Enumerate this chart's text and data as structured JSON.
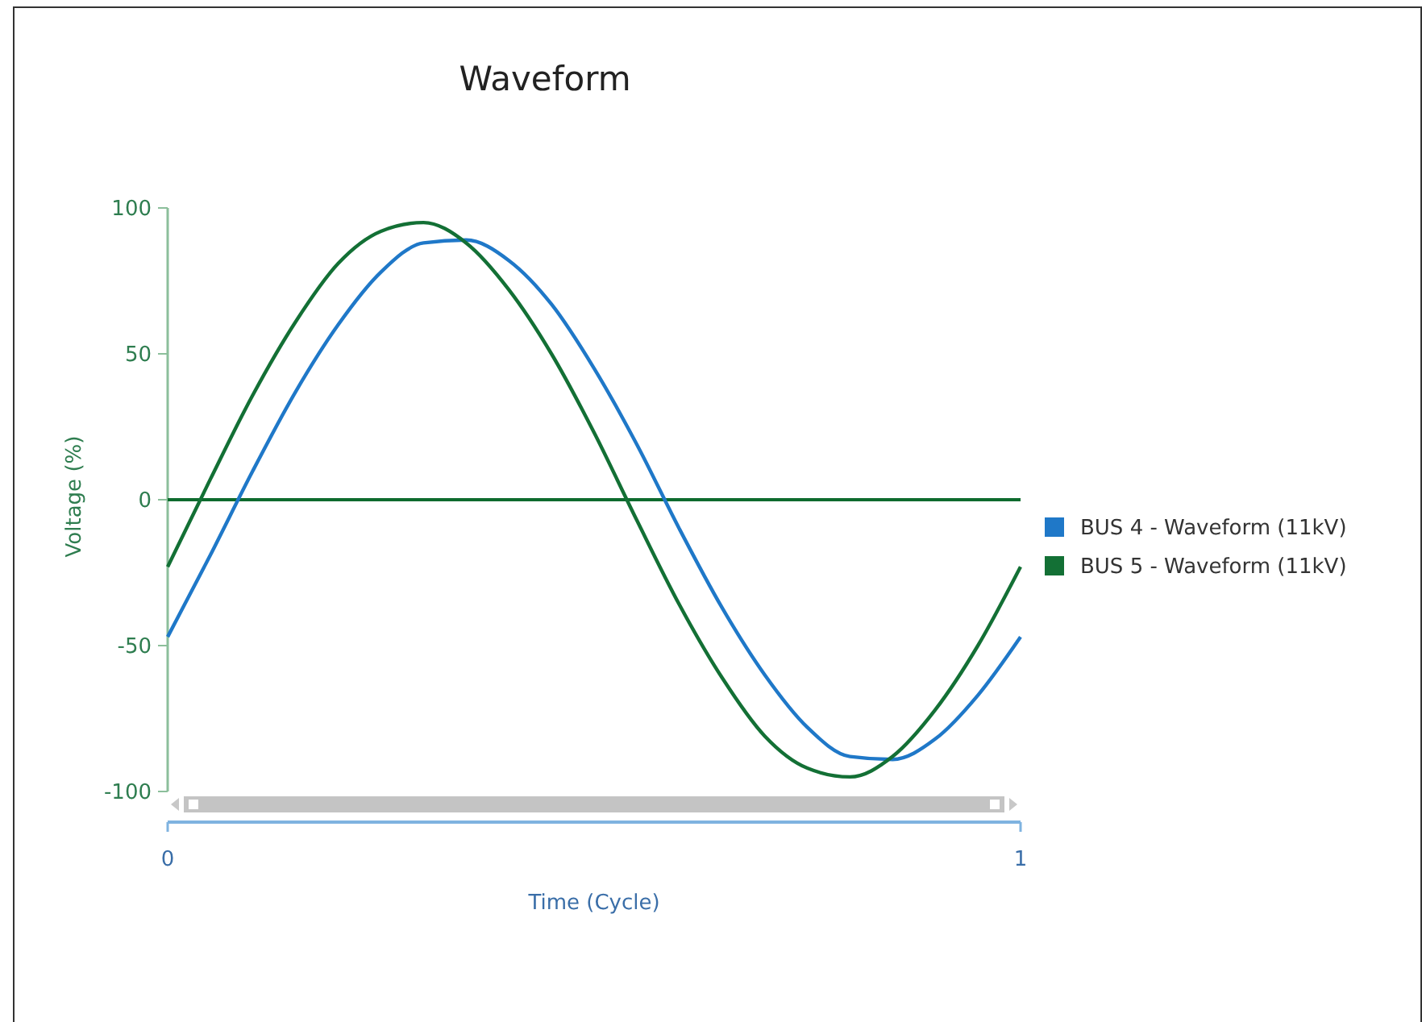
{
  "chart_data": {
    "type": "line",
    "title": "Waveform",
    "xlabel": "Time (Cycle)",
    "ylabel": "Voltage (%)",
    "x": [
      0,
      0.05,
      0.1,
      0.15,
      0.2,
      0.25,
      0.3,
      0.35,
      0.4,
      0.45,
      0.5,
      0.55,
      0.6,
      0.65,
      0.7,
      0.75,
      0.8,
      0.85,
      0.9,
      0.95,
      1
    ],
    "series": [
      {
        "name": "BUS 4 - Waveform (11kV)",
        "color": "#1f78c8",
        "values": [
          -47,
          -19,
          10,
          37,
          60,
          78,
          88,
          89,
          82,
          67,
          45,
          19,
          -10,
          -37,
          -60,
          -78,
          -88,
          -89,
          -82,
          -67,
          -47
        ]
      },
      {
        "name": "BUS 5 - Waveform (11kV)",
        "color": "#137035",
        "values": [
          -23,
          7,
          36,
          61,
          81,
          92,
          95,
          88,
          72,
          50,
          23,
          -7,
          -36,
          -61,
          -81,
          -92,
          -95,
          -88,
          -72,
          -50,
          -23
        ]
      }
    ],
    "xlim": [
      0,
      1
    ],
    "xticks": [
      0,
      1
    ],
    "ylim": [
      -100,
      100
    ],
    "yticks": [
      -100,
      -50,
      0,
      50,
      100
    ],
    "ref_lines": [
      {
        "axis": "y",
        "value": 0,
        "color": "#0e6b2e"
      }
    ],
    "legend": "right",
    "grid": false,
    "marker": "none",
    "line_style": "solid"
  }
}
